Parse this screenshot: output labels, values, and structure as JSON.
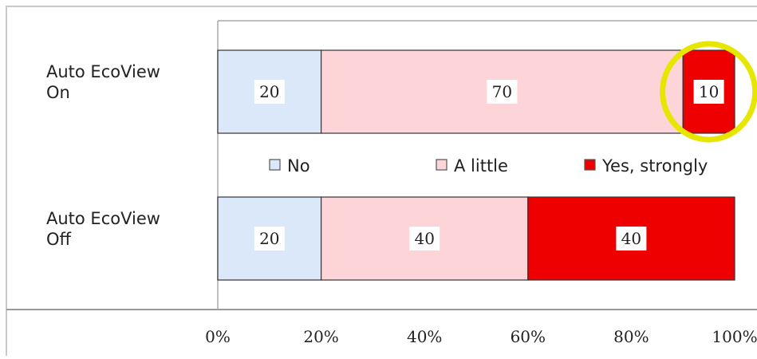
{
  "chart_data": {
    "type": "bar",
    "orientation": "horizontal",
    "stacked": "percent",
    "categories": [
      "Auto EcoView On",
      "Auto EcoView Off"
    ],
    "category_lines": [
      [
        "Auto EcoView",
        "On"
      ],
      [
        "Auto EcoView",
        "Off"
      ]
    ],
    "series": [
      {
        "name": "No",
        "values": [
          20,
          20
        ],
        "color": "#dbe8fa"
      },
      {
        "name": "A little",
        "values": [
          70,
          40
        ],
        "color": "#fdd5d9"
      },
      {
        "name": "Yes, strongly",
        "values": [
          10,
          40
        ],
        "color": "#ee0000"
      }
    ],
    "x_ticks": [
      "0%",
      "20%",
      "40%",
      "60%",
      "80%",
      "100%"
    ],
    "xlim": [
      0,
      100
    ],
    "legend": "between-bars",
    "grid": false,
    "highlight": {
      "category": "Auto EcoView On",
      "series": "Yes, strongly",
      "color": "#e6e600"
    }
  }
}
